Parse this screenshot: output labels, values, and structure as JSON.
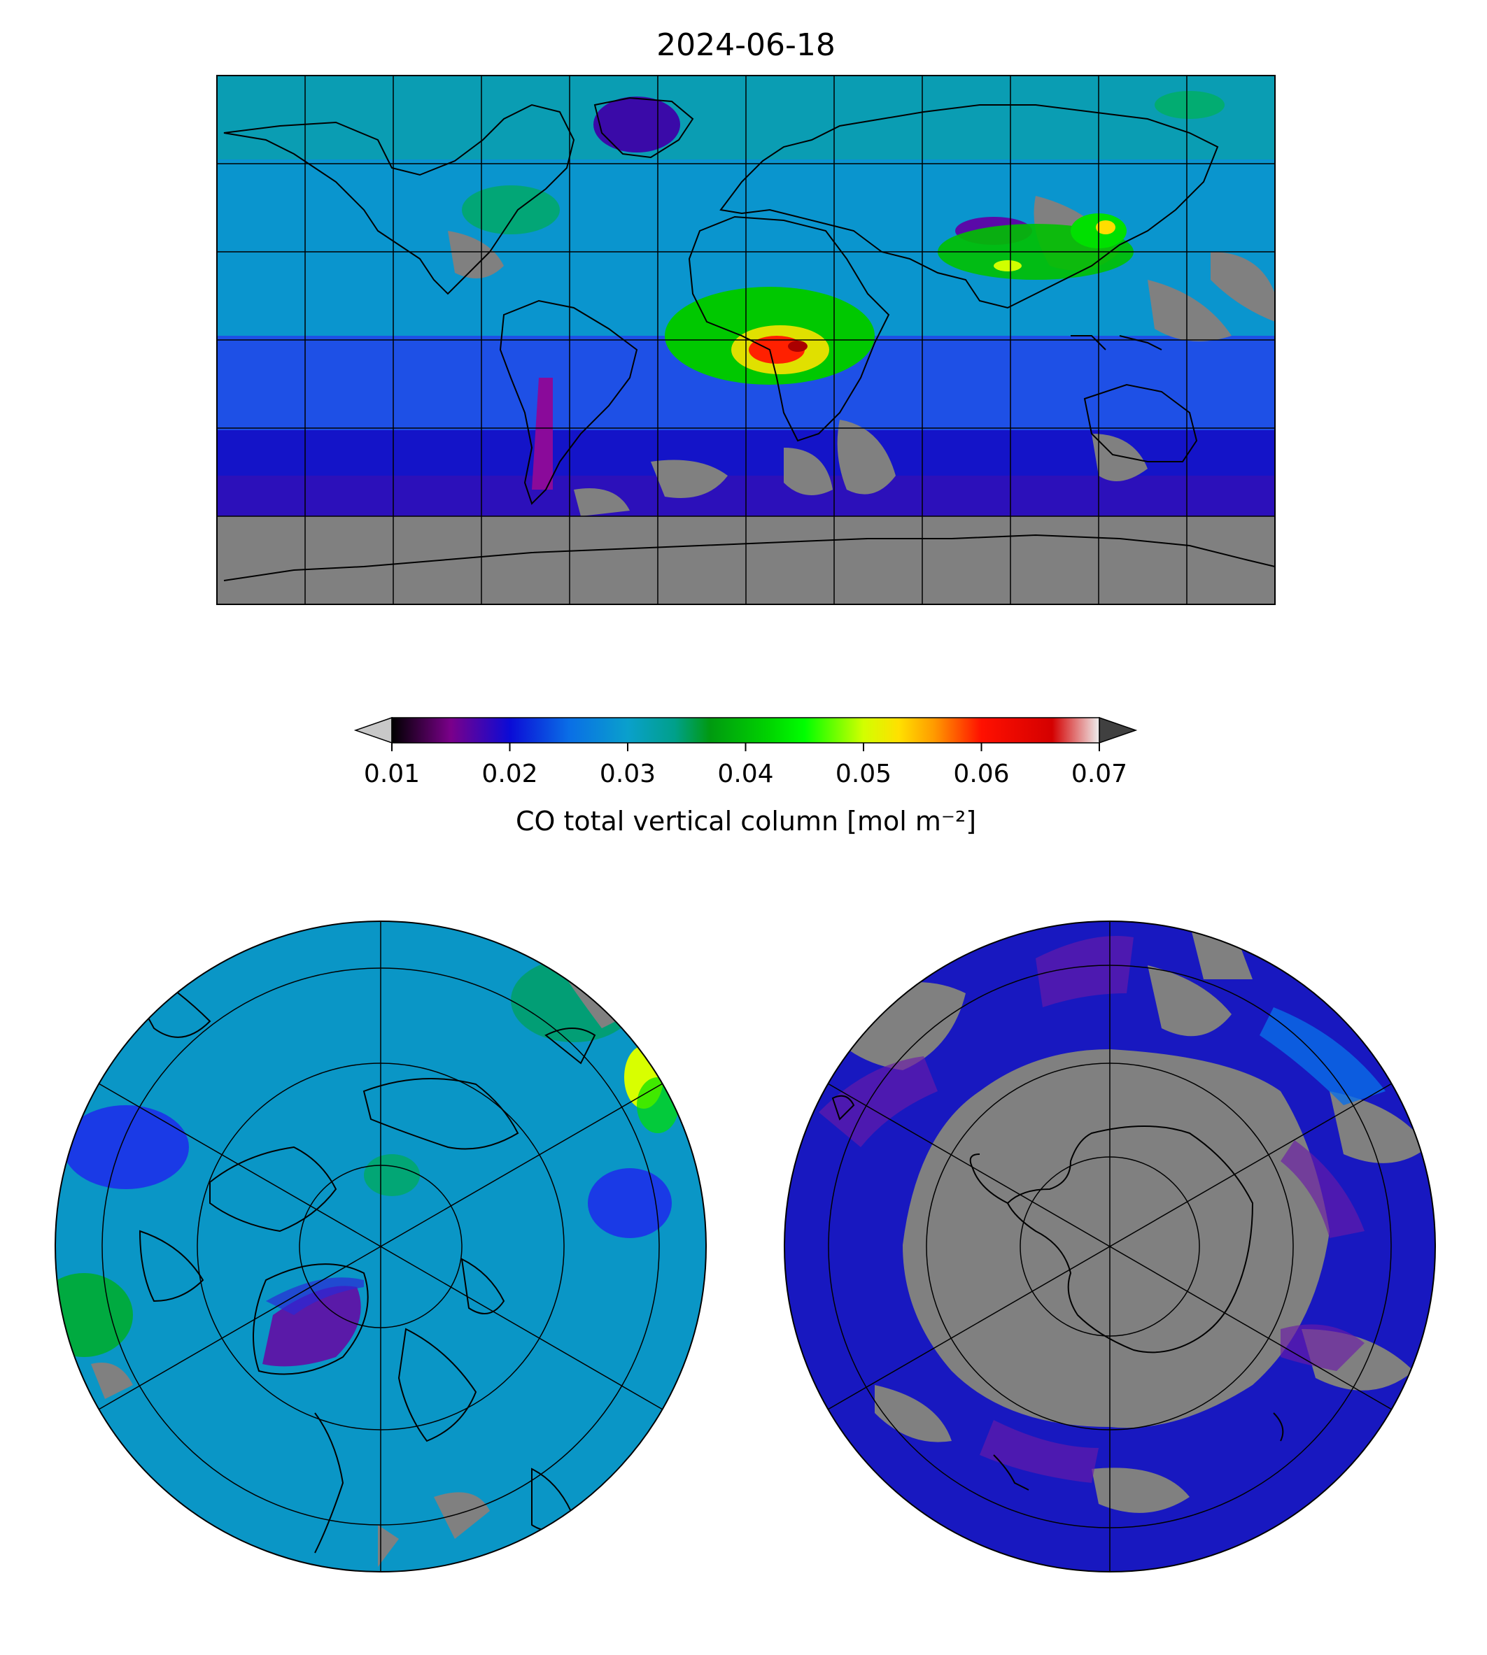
{
  "title": "2024-06-18",
  "colorbar": {
    "label": "CO total vertical column [mol m⁻²]",
    "ticks": [
      "0.01",
      "0.02",
      "0.03",
      "0.04",
      "0.05",
      "0.06",
      "0.07"
    ],
    "range": [
      0.01,
      0.07
    ],
    "under_color": "#c8c8c8",
    "over_color": "#404040",
    "stops": [
      {
        "v": 0.01,
        "c": "#000000"
      },
      {
        "v": 0.015,
        "c": "#7a008a"
      },
      {
        "v": 0.02,
        "c": "#0b0bd6"
      },
      {
        "v": 0.025,
        "c": "#0a6ee6"
      },
      {
        "v": 0.03,
        "c": "#0aa0cc"
      },
      {
        "v": 0.034,
        "c": "#00a08a"
      },
      {
        "v": 0.037,
        "c": "#009a10"
      },
      {
        "v": 0.042,
        "c": "#00d400"
      },
      {
        "v": 0.045,
        "c": "#00ff00"
      },
      {
        "v": 0.05,
        "c": "#d2ff00"
      },
      {
        "v": 0.053,
        "c": "#ffe000"
      },
      {
        "v": 0.056,
        "c": "#ff9a00"
      },
      {
        "v": 0.06,
        "c": "#ff1000"
      },
      {
        "v": 0.066,
        "c": "#d40000"
      },
      {
        "v": 0.07,
        "c": "#eeeeee"
      }
    ]
  },
  "maps": {
    "global": {
      "projection": "plate-carree",
      "missing_color": "#808080"
    },
    "north_polar": {
      "projection": "north-polar-stereographic",
      "missing_color": "#808080"
    },
    "south_polar": {
      "projection": "south-polar-stereographic",
      "missing_color": "#808080"
    }
  }
}
